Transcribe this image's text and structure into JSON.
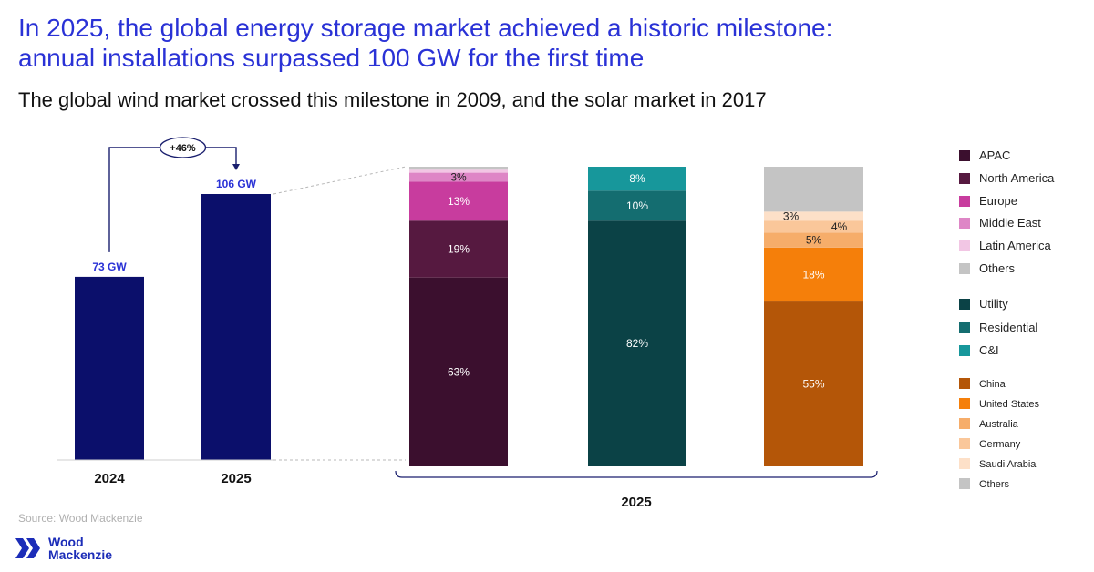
{
  "title": {
    "line1": "In 2025, the global energy storage market achieved a historic milestone:",
    "line2": "annual installations surpassed 100 GW for the first time"
  },
  "subtitle": "The global wind market crossed this milestone in 2009, and the solar market in 2017",
  "source": "Source: Wood Mackenzie",
  "logo": {
    "line1": "Wood",
    "line2": "Mackenzie",
    "icon": "wood-mackenzie-logo-icon",
    "color": "#1c2db8"
  },
  "chart_data": [
    {
      "type": "bar",
      "categories": [
        "2024",
        "2025"
      ],
      "values": [
        73,
        106
      ],
      "unit": "GW",
      "data_labels": [
        "73 GW",
        "106 GW"
      ],
      "growth_label": "+46%",
      "ylim": [
        0,
        106
      ],
      "bar_color": "#0b0f6b",
      "axis_color": "#1a1f6e"
    },
    {
      "type": "stacked-bar",
      "xlabel": "2025",
      "stacks": [
        {
          "name": "region",
          "segments": [
            {
              "name": "APAC",
              "value": 63,
              "label": "63%",
              "color": "#3b0f2e"
            },
            {
              "name": "North America",
              "value": 19,
              "label": "19%",
              "color": "#561940"
            },
            {
              "name": "Europe",
              "value": 13,
              "label": "13%",
              "color": "#c83c9e"
            },
            {
              "name": "Middle East",
              "value": 3,
              "label": "3%",
              "color": "#de86c6"
            },
            {
              "name": "Latin America",
              "value": 1,
              "label": "",
              "color": "#f2c6e4"
            },
            {
              "name": "Others",
              "value": 1,
              "label": "",
              "color": "#c4c4c4"
            }
          ]
        },
        {
          "name": "segment",
          "segments": [
            {
              "name": "Utility",
              "value": 82,
              "label": "82%",
              "color": "#0b4246"
            },
            {
              "name": "Residential",
              "value": 10,
              "label": "10%",
              "color": "#146d70"
            },
            {
              "name": "C&I",
              "value": 8,
              "label": "8%",
              "color": "#17979b"
            }
          ]
        },
        {
          "name": "country",
          "segments": [
            {
              "name": "China",
              "value": 55,
              "label": "55%",
              "color": "#b45608"
            },
            {
              "name": "United States",
              "value": 18,
              "label": "18%",
              "color": "#f57f0a"
            },
            {
              "name": "Australia",
              "value": 5,
              "label": "5%",
              "color": "#f6ad6a"
            },
            {
              "name": "Germany",
              "value": 4,
              "label": "4%",
              "color": "#fac79a"
            },
            {
              "name": "Saudi Arabia",
              "value": 3,
              "label": "3%",
              "color": "#fde0c8"
            },
            {
              "name": "Others",
              "value": 15,
              "label": "",
              "color": "#c4c4c4"
            }
          ]
        }
      ],
      "legend": [
        {
          "label": "APAC",
          "color": "#3b0f2e"
        },
        {
          "label": "North America",
          "color": "#561940"
        },
        {
          "label": "Europe",
          "color": "#c83c9e"
        },
        {
          "label": "Middle East",
          "color": "#de86c6"
        },
        {
          "label": "Latin America",
          "color": "#f2c6e4"
        },
        {
          "label": "Others",
          "color": "#c4c4c4"
        },
        {
          "label": "Utility",
          "color": "#0b4246"
        },
        {
          "label": "Residential",
          "color": "#146d70"
        },
        {
          "label": "C&I",
          "color": "#17979b"
        },
        {
          "label": "China",
          "color": "#b45608"
        },
        {
          "label": "United States",
          "color": "#f57f0a"
        },
        {
          "label": "Australia",
          "color": "#f6ad6a"
        },
        {
          "label": "Germany",
          "color": "#fac79a"
        },
        {
          "label": "Saudi Arabia",
          "color": "#fde0c8"
        },
        {
          "label": "Others",
          "color": "#c4c4c4"
        }
      ]
    }
  ]
}
